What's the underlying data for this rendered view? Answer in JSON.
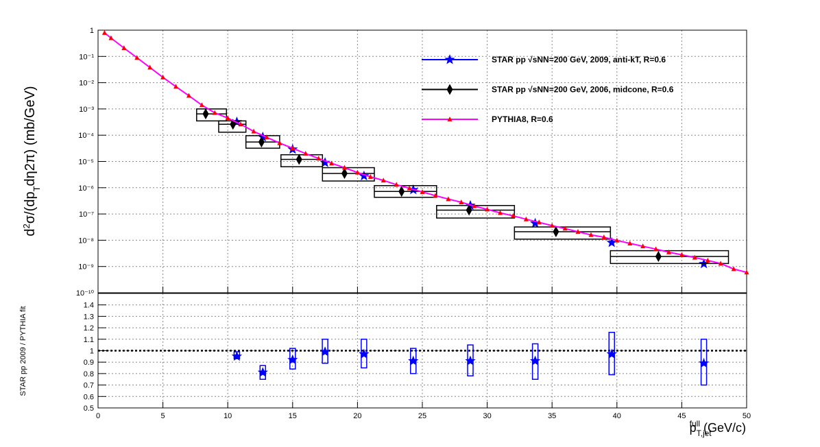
{
  "chart_data": [
    {
      "type": "scatter",
      "log_y": true,
      "grid": true,
      "legend": "upper-right",
      "show_xtick_labels": false,
      "xlim": [
        0,
        50
      ],
      "ylim": [
        1e-10,
        1
      ],
      "xticks": [
        0,
        5,
        10,
        15,
        20,
        25,
        30,
        35,
        40,
        45,
        50
      ],
      "yticks": [
        {
          "value": 1e-10,
          "label": "10⁻¹⁰"
        },
        {
          "value": 1e-09,
          "label": "10⁻⁹"
        },
        {
          "value": 1e-08,
          "label": "10⁻⁸"
        },
        {
          "value": 1e-07,
          "label": "10⁻⁷"
        },
        {
          "value": 1e-06,
          "label": "10⁻⁶"
        },
        {
          "value": 1e-05,
          "label": "10⁻⁵"
        },
        {
          "value": 0.0001,
          "label": "10⁻⁴"
        },
        {
          "value": 0.001,
          "label": "10⁻³"
        },
        {
          "value": 0.01,
          "label": "10⁻²"
        },
        {
          "value": 0.1,
          "label": "10⁻¹"
        },
        1
      ],
      "y_label": {
        "text1": "d",
        "sup": "2",
        "text2": "σ/(dp",
        "sub": "T",
        "text3": "dη2π) (mb/GeV)"
      },
      "series": [
        {
          "name": "STAR pp √sNN=200 GeV, 2009, anti-kT, R=0.6",
          "color": "#0000ff",
          "marker": "star",
          "x": [
            10.7,
            12.7,
            15.0,
            17.5,
            20.5,
            24.3,
            28.7,
            33.7,
            39.6,
            46.7
          ],
          "values": [
            0.00032,
            8.5e-05,
            2.9e-05,
            9e-06,
            2.8e-06,
            8.3e-07,
            2.1e-07,
            4.4e-08,
            8.1e-09,
            1.26e-09
          ]
        },
        {
          "name": "STAR pp √sNN=200 GeV, 2006, midcone, R=0.6",
          "color": "#000000",
          "marker": "diamond",
          "x": [
            8.3,
            10.4,
            12.6,
            15.5,
            19.0,
            23.4,
            28.6,
            35.3,
            43.2
          ],
          "values": [
            0.00065,
            0.00026,
            5.5e-05,
            1.2e-05,
            3.5e-06,
            7.2e-07,
            1.4e-07,
            2.1e-08,
            2.4e-09
          ],
          "box_xlow": [
            7.6,
            9.3,
            11.4,
            14.1,
            17.3,
            21.3,
            26.1,
            32.1,
            39.5
          ],
          "box_xhigh": [
            9.9,
            11.4,
            14.0,
            17.3,
            21.3,
            26.1,
            32.1,
            39.5,
            48.6
          ],
          "box_low": [
            0.00035,
            0.00013,
            3.2e-05,
            6.3e-06,
            1.8e-06,
            4.3e-07,
            7e-08,
            1.1e-08,
            1.3e-09
          ],
          "box_high": [
            0.001,
            0.00035,
            9.6e-05,
            1.8e-05,
            5.8e-06,
            1.2e-06,
            2.1e-07,
            3.2e-08,
            4e-09
          ]
        },
        {
          "name": "PYTHIA8, R=0.6",
          "color": "#ff0000",
          "line_color": "#ff00ff",
          "marker": "triangle",
          "x": [
            0.5,
            1,
            2,
            3,
            4,
            5,
            6,
            7,
            8,
            9,
            10,
            11,
            12,
            13,
            14,
            15,
            16,
            17,
            18,
            19,
            20,
            21,
            22,
            23,
            24,
            25,
            26,
            27,
            28,
            29,
            30,
            31,
            32,
            33,
            34,
            35,
            36,
            37,
            38,
            39,
            40,
            41,
            42,
            43,
            44,
            45,
            46,
            47,
            48,
            49,
            50
          ],
          "values": [
            0.79,
            0.5,
            0.21,
            0.089,
            0.038,
            0.016,
            0.0071,
            0.0032,
            0.0014,
            0.00071,
            0.00045,
            0.00026,
            0.00014,
            8.3e-05,
            5e-05,
            3.2e-05,
            2e-05,
            1.3e-05,
            8.5e-06,
            5.8e-06,
            3.8e-06,
            2.6e-06,
            1.9e-06,
            1.3e-06,
            9.5e-07,
            6.9e-07,
            5e-07,
            3.7e-07,
            2.8e-07,
            2e-07,
            1.5e-07,
            1.1e-07,
            8.5e-08,
            6.3e-08,
            4.8e-08,
            3.6e-08,
            2.8e-08,
            2.1e-08,
            1.6e-08,
            1.3e-08,
            9.8e-09,
            7.6e-09,
            5.9e-09,
            4.6e-09,
            3.5e-09,
            2.8e-09,
            2.2e-09,
            1.7e-09,
            1.3e-09,
            8e-10,
            6e-10
          ]
        }
      ]
    },
    {
      "type": "scatter",
      "log_y": false,
      "grid": true,
      "show_xtick_labels": true,
      "xlim": [
        0,
        50
      ],
      "ylim": [
        0.5,
        1.5
      ],
      "xticks": [
        0,
        5,
        10,
        15,
        20,
        25,
        30,
        35,
        40,
        45,
        50
      ],
      "yticks": [
        0.5,
        0.6,
        0.7,
        0.8,
        0.9,
        1,
        1.1,
        1.2,
        1.3,
        1.4
      ],
      "y_label": "STAR pp 2009 / PYTHIA fit",
      "x_label": {
        "base": "p",
        "sub": "T,jet",
        "sup": "full",
        "unit": " (GeV/c)"
      },
      "reference_line": 1,
      "series": [
        {
          "color": "#0000ff",
          "marker": "star",
          "x": [
            10.7,
            12.7,
            15.0,
            17.5,
            20.5,
            24.3,
            28.7,
            33.7,
            39.6,
            46.7
          ],
          "values": [
            0.95,
            0.81,
            0.92,
            0.99,
            0.97,
            0.91,
            0.91,
            0.91,
            0.97,
            0.89
          ],
          "syst_low": [
            0.93,
            0.75,
            0.84,
            0.89,
            0.85,
            0.8,
            0.78,
            0.75,
            0.79,
            0.7
          ],
          "syst_high": [
            0.99,
            0.87,
            1.02,
            1.1,
            1.1,
            1.02,
            1.05,
            1.06,
            1.16,
            1.1
          ]
        }
      ]
    }
  ]
}
